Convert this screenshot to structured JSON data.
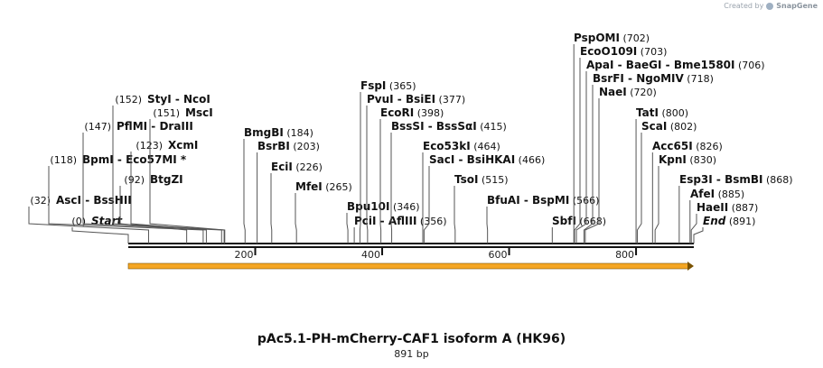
{
  "credit": {
    "prefix": "Created by",
    "brand": "SnapGene"
  },
  "title": "pAc5.1-PH-mCherry-CAF1 isoform A (HK96)",
  "length_label": "891 bp",
  "sequence_length": 891,
  "ruler_ticks": [
    {
      "bp": 200,
      "label": "200"
    },
    {
      "bp": 400,
      "label": "400"
    },
    {
      "bp": 600,
      "label": "600"
    },
    {
      "bp": 800,
      "label": "800"
    }
  ],
  "feature_arrow": {
    "start": 1,
    "end": 891,
    "color": "#f5a623"
  },
  "sites": [
    {
      "names": [
        "Start"
      ],
      "pos": "(0)",
      "bp": 0,
      "style": "end"
    },
    {
      "names": [
        "AscI",
        "BssHII"
      ],
      "pos": "(32)",
      "bp": 32
    },
    {
      "names": [
        "BtgZI"
      ],
      "pos": "(92)",
      "bp": 92
    },
    {
      "names": [
        "BpmI",
        "Eco57MI *"
      ],
      "pos": "(118)",
      "bp": 118
    },
    {
      "names": [
        "XcmI"
      ],
      "pos": "(123)",
      "bp": 123
    },
    {
      "names": [
        "PflMI",
        "DraIII"
      ],
      "pos": "(147)",
      "bp": 147
    },
    {
      "names": [
        "MscI"
      ],
      "pos": "(151)",
      "bp": 151
    },
    {
      "names": [
        "StyI",
        "NcoI"
      ],
      "pos": "(152)",
      "bp": 152
    },
    {
      "names": [
        "BmgBI"
      ],
      "pos": "(184)",
      "bp": 184
    },
    {
      "names": [
        "BsrBI"
      ],
      "pos": "(203)",
      "bp": 203
    },
    {
      "names": [
        "EciI"
      ],
      "pos": "(226)",
      "bp": 226
    },
    {
      "names": [
        "MfeI"
      ],
      "pos": "(265)",
      "bp": 265
    },
    {
      "names": [
        "Bpu10I"
      ],
      "pos": "(346)",
      "bp": 346
    },
    {
      "names": [
        "PciI",
        "AflIII"
      ],
      "pos": "(356)",
      "bp": 356
    },
    {
      "names": [
        "FspI"
      ],
      "pos": "(365)",
      "bp": 365
    },
    {
      "names": [
        "PvuI",
        "BsiEI"
      ],
      "pos": "(377)",
      "bp": 377
    },
    {
      "names": [
        "EcoRI"
      ],
      "pos": "(398)",
      "bp": 398
    },
    {
      "names": [
        "BssSI",
        "BssSαI"
      ],
      "pos": "(415)",
      "bp": 415
    },
    {
      "names": [
        "Eco53kI"
      ],
      "pos": "(464)",
      "bp": 464
    },
    {
      "names": [
        "SacI",
        "BsiHKAI"
      ],
      "pos": "(466)",
      "bp": 466
    },
    {
      "names": [
        "TsoI"
      ],
      "pos": "(515)",
      "bp": 515
    },
    {
      "names": [
        "BfuAI",
        "BspMI"
      ],
      "pos": "(566)",
      "bp": 566
    },
    {
      "names": [
        "SbfI"
      ],
      "pos": "(668)",
      "bp": 668
    },
    {
      "names": [
        "PspOMI"
      ],
      "pos": "(702)",
      "bp": 702
    },
    {
      "names": [
        "EcoO109I"
      ],
      "pos": "(703)",
      "bp": 703
    },
    {
      "names": [
        "ApaI",
        "BaeGI",
        "Bme1580I"
      ],
      "pos": "(706)",
      "bp": 706
    },
    {
      "names": [
        "BsrFI",
        "NgoMIV"
      ],
      "pos": "(718)",
      "bp": 718
    },
    {
      "names": [
        "NaeI"
      ],
      "pos": "(720)",
      "bp": 720
    },
    {
      "names": [
        "TatI"
      ],
      "pos": "(800)",
      "bp": 800
    },
    {
      "names": [
        "ScaI"
      ],
      "pos": "(802)",
      "bp": 802
    },
    {
      "names": [
        "Acc65I"
      ],
      "pos": "(826)",
      "bp": 826
    },
    {
      "names": [
        "KpnI"
      ],
      "pos": "(830)",
      "bp": 830
    },
    {
      "names": [
        "Esp3I",
        "BsmBI"
      ],
      "pos": "(868)",
      "bp": 868
    },
    {
      "names": [
        "AfeI"
      ],
      "pos": "(885)",
      "bp": 885
    },
    {
      "names": [
        "HaeII"
      ],
      "pos": "(887)",
      "bp": 887
    },
    {
      "names": [
        "End"
      ],
      "pos": "(891)",
      "bp": 891,
      "style": "end"
    }
  ]
}
